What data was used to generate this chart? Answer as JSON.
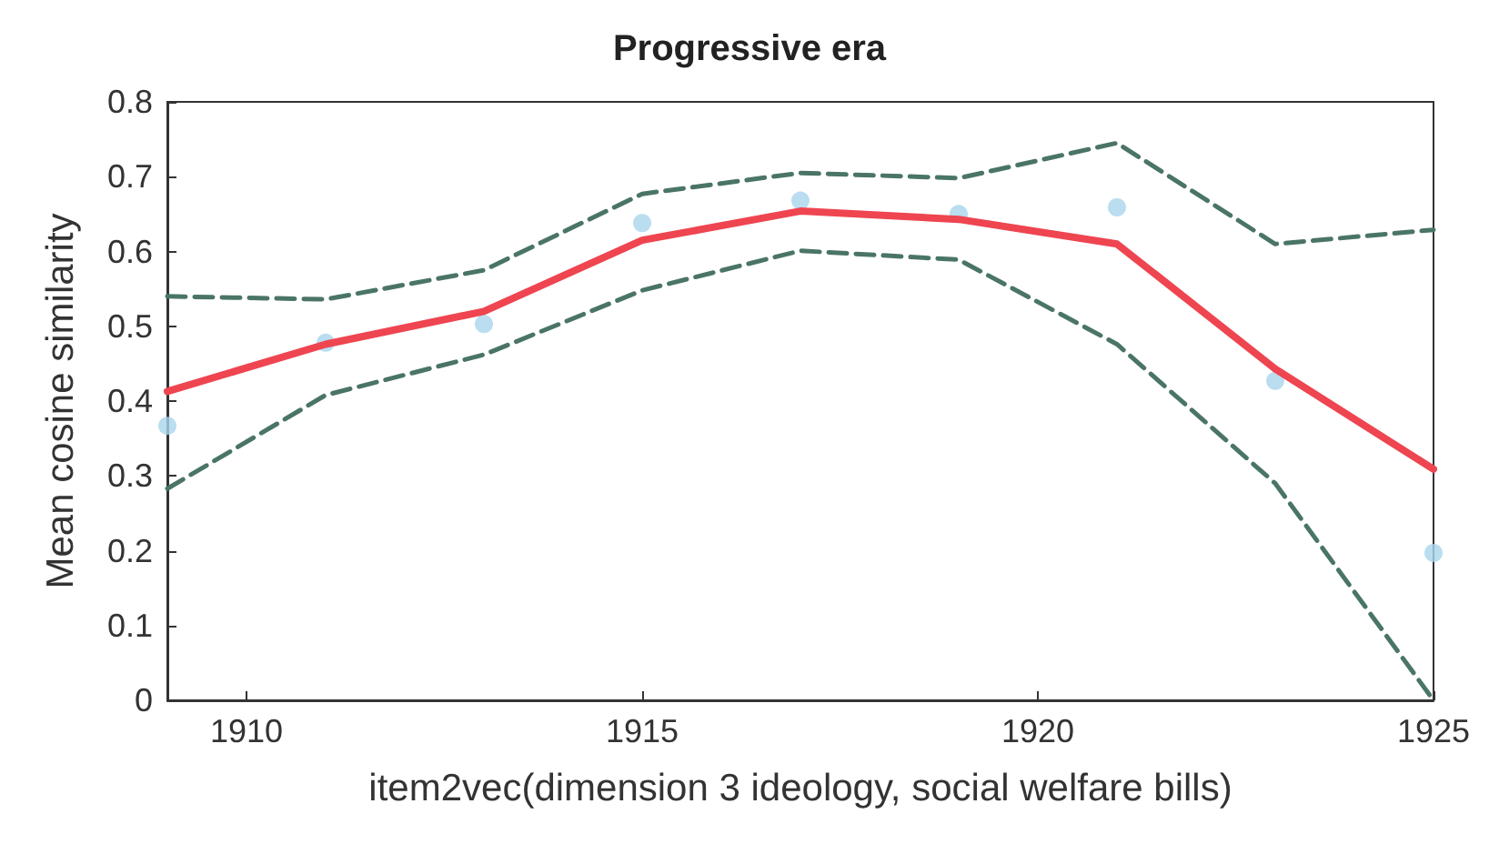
{
  "chart_data": {
    "type": "line",
    "title": "Progressive era",
    "xlabel": "item2vec(dimension 3 ideology, social welfare bills)",
    "ylabel": "Mean cosine similarity",
    "x": [
      1909,
      1911,
      1913,
      1915,
      1917,
      1919,
      1921,
      1923,
      1925
    ],
    "series": [
      {
        "type": "scatter",
        "color": "#a9d4ec",
        "marker": "circle",
        "values": [
          0.367,
          0.478,
          0.503,
          0.638,
          0.668,
          0.65,
          0.659,
          0.427,
          0.197
        ]
      },
      {
        "color": "#ee4550",
        "line_style": "solid",
        "marker": "none",
        "values": [
          0.413,
          0.476,
          0.52,
          0.615,
          0.654,
          0.643,
          0.61,
          0.443,
          0.309
        ]
      },
      {
        "color": "#4a7565",
        "line_style": "dashed",
        "marker": "none",
        "values": [
          0.54,
          0.536,
          0.575,
          0.677,
          0.705,
          0.698,
          0.745,
          0.61,
          0.629
        ]
      },
      {
        "color": "#4a7565",
        "line_style": "dashed",
        "marker": "none",
        "values": [
          0.283,
          0.408,
          0.462,
          0.548,
          0.601,
          0.589,
          0.476,
          0.29,
          0.0
        ]
      }
    ],
    "xlim": [
      1909,
      1925
    ],
    "xticks": [
      1910,
      1915,
      1920,
      1925
    ],
    "ylim": [
      0,
      0.8
    ],
    "yticks": [
      0,
      0.1,
      0.2,
      0.3,
      0.4,
      0.5,
      0.6,
      0.7,
      0.8
    ],
    "grid": false
  }
}
